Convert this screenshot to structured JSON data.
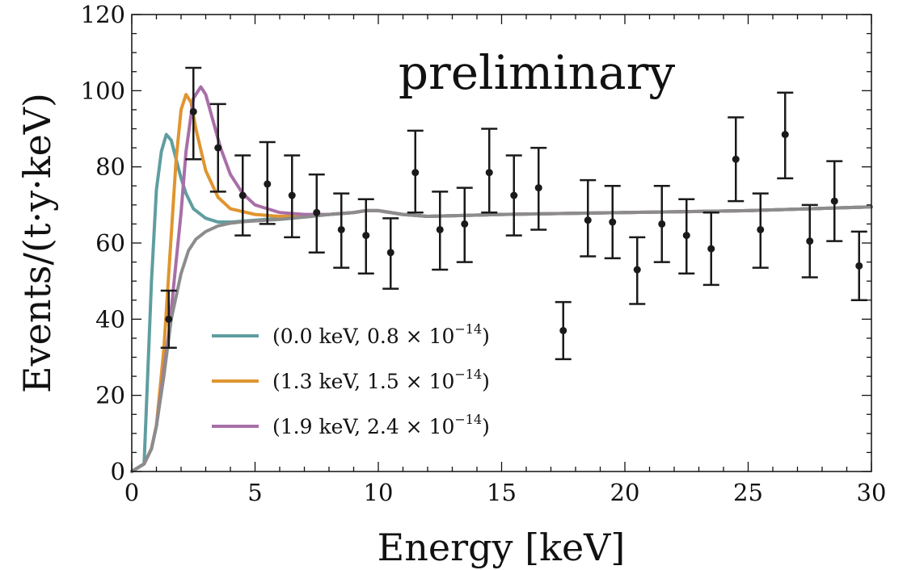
{
  "chart_data": {
    "type": "line",
    "xlabel": "Energy [keV]",
    "ylabel": "Events/(t·y·keV)",
    "annotation": "preliminary",
    "xlim": [
      0,
      30
    ],
    "ylim": [
      0,
      120
    ],
    "xticks": [
      0,
      5,
      10,
      15,
      20,
      25,
      30
    ],
    "yticks": [
      0,
      20,
      40,
      60,
      80,
      100,
      120
    ],
    "grid": false,
    "legend_position": "lower-left",
    "series": [
      {
        "name": "(0.0 keV, 0.8 × 10⁻¹⁴)",
        "label_main": "(0.0 keV, 0.8 × 10",
        "label_exp": "−14",
        "label_close": ")",
        "color": "#5f9ea0",
        "x": [
          0,
          0.5,
          0.6,
          0.8,
          1.0,
          1.2,
          1.4,
          1.6,
          1.8,
          2.0,
          2.2,
          2.5,
          3.0,
          3.5,
          4.0,
          5.0,
          6.0,
          7.0,
          8.0,
          9.0,
          9.5,
          10.0,
          11.0,
          12.0,
          15.0,
          20.0,
          25.0,
          30.0
        ],
        "y": [
          0,
          2,
          18,
          50,
          74,
          84,
          88.5,
          87,
          82,
          77,
          73,
          69,
          66.5,
          65.5,
          65.5,
          66,
          66.5,
          67,
          67.5,
          68,
          68.5,
          68.5,
          67.5,
          67,
          67.5,
          68,
          68.5,
          69.5
        ]
      },
      {
        "name": "(1.3 keV, 1.5 × 10⁻¹⁴)",
        "label_main": "(1.3 keV, 1.5 × 10",
        "label_exp": "−14",
        "label_close": ")",
        "color": "#e0952f",
        "x": [
          0,
          0.5,
          0.8,
          1.0,
          1.3,
          1.6,
          1.8,
          2.0,
          2.2,
          2.4,
          2.6,
          3.0,
          3.5,
          4.0,
          5.0,
          6.0,
          7.0,
          8.0,
          9.0,
          9.5,
          10.0,
          11.0,
          12.0,
          15.0,
          20.0,
          25.0,
          30.0
        ],
        "y": [
          0,
          2,
          6,
          12,
          32,
          62,
          82,
          95,
          99,
          97,
          90,
          79,
          72,
          69,
          67.5,
          67,
          67,
          67.5,
          68,
          68.5,
          68.5,
          67.5,
          67,
          67.5,
          68,
          68.5,
          69.5
        ]
      },
      {
        "name": "(1.9 keV, 2.4 × 10⁻¹⁴)",
        "label_main": "(1.9 keV, 2.4 × 10",
        "label_exp": "−14",
        "label_close": ")",
        "color": "#a86fa7",
        "x": [
          0,
          0.5,
          0.8,
          1.0,
          1.5,
          2.0,
          2.2,
          2.5,
          2.8,
          3.0,
          3.3,
          3.6,
          4.0,
          4.5,
          5.0,
          6.0,
          7.0,
          8.0,
          9.0,
          9.5,
          10.0,
          11.0,
          12.0,
          15.0,
          20.0,
          25.0,
          30.0
        ],
        "y": [
          0,
          2,
          6,
          12,
          36,
          68,
          84,
          98,
          101,
          99,
          92,
          85,
          78,
          73,
          70,
          68,
          67.5,
          67.5,
          68,
          68.5,
          68.5,
          67.5,
          67,
          67.5,
          68,
          68.5,
          69.5
        ]
      },
      {
        "color": "#8c8c8c",
        "x": [
          0,
          0.5,
          0.8,
          1.0,
          1.3,
          1.6,
          2.0,
          2.3,
          2.6,
          3.0,
          3.5,
          4.0,
          4.5,
          5.0,
          6.0,
          7.0,
          8.0,
          9.0,
          9.5,
          10.0,
          11.0,
          12.0,
          15.0,
          20.0,
          25.0,
          30.0
        ],
        "y": [
          0,
          2,
          6,
          12,
          25,
          40,
          52,
          58,
          61,
          63,
          64.5,
          65.2,
          65.6,
          65.8,
          66.2,
          66.8,
          67.5,
          68,
          68.5,
          68.5,
          67.5,
          67,
          67.5,
          68,
          68.5,
          69.5
        ]
      }
    ],
    "data_points": [
      {
        "x": 1.5,
        "y": 40,
        "yerr_low": 32.5,
        "yerr_high": 47.5
      },
      {
        "x": 2.5,
        "y": 94.5,
        "yerr_low": 82,
        "yerr_high": 106
      },
      {
        "x": 3.5,
        "y": 85,
        "yerr_low": 73.5,
        "yerr_high": 96.5
      },
      {
        "x": 4.5,
        "y": 72.5,
        "yerr_low": 62,
        "yerr_high": 83
      },
      {
        "x": 5.5,
        "y": 75.5,
        "yerr_low": 65,
        "yerr_high": 86.5
      },
      {
        "x": 6.5,
        "y": 72.5,
        "yerr_low": 61.5,
        "yerr_high": 83
      },
      {
        "x": 7.5,
        "y": 68,
        "yerr_low": 57.5,
        "yerr_high": 78
      },
      {
        "x": 8.5,
        "y": 63.5,
        "yerr_low": 53.5,
        "yerr_high": 73
      },
      {
        "x": 9.5,
        "y": 62,
        "yerr_low": 52,
        "yerr_high": 71.5
      },
      {
        "x": 10.5,
        "y": 57.5,
        "yerr_low": 48,
        "yerr_high": 66.5
      },
      {
        "x": 11.5,
        "y": 78.5,
        "yerr_low": 68,
        "yerr_high": 89.5
      },
      {
        "x": 12.5,
        "y": 63.5,
        "yerr_low": 53,
        "yerr_high": 73.5
      },
      {
        "x": 13.5,
        "y": 65,
        "yerr_low": 55,
        "yerr_high": 74.5
      },
      {
        "x": 14.5,
        "y": 78.5,
        "yerr_low": 68,
        "yerr_high": 90
      },
      {
        "x": 15.5,
        "y": 72.5,
        "yerr_low": 62,
        "yerr_high": 83
      },
      {
        "x": 16.5,
        "y": 74.5,
        "yerr_low": 63.5,
        "yerr_high": 85
      },
      {
        "x": 17.5,
        "y": 37,
        "yerr_low": 29.5,
        "yerr_high": 44.5
      },
      {
        "x": 18.5,
        "y": 66,
        "yerr_low": 56.5,
        "yerr_high": 76.5
      },
      {
        "x": 19.5,
        "y": 65.5,
        "yerr_low": 56,
        "yerr_high": 75
      },
      {
        "x": 20.5,
        "y": 53,
        "yerr_low": 44,
        "yerr_high": 61.5
      },
      {
        "x": 21.5,
        "y": 65,
        "yerr_low": 55,
        "yerr_high": 75
      },
      {
        "x": 22.5,
        "y": 62,
        "yerr_low": 52,
        "yerr_high": 71.5
      },
      {
        "x": 23.5,
        "y": 58.5,
        "yerr_low": 49,
        "yerr_high": 68
      },
      {
        "x": 24.5,
        "y": 82,
        "yerr_low": 71,
        "yerr_high": 93
      },
      {
        "x": 25.5,
        "y": 63.5,
        "yerr_low": 53.5,
        "yerr_high": 73
      },
      {
        "x": 26.5,
        "y": 88.5,
        "yerr_low": 77,
        "yerr_high": 99.5
      },
      {
        "x": 27.5,
        "y": 60.5,
        "yerr_low": 51,
        "yerr_high": 70
      },
      {
        "x": 28.5,
        "y": 71,
        "yerr_low": 60.5,
        "yerr_high": 81.5
      },
      {
        "x": 29.5,
        "y": 54,
        "yerr_low": 45,
        "yerr_high": 63
      }
    ]
  }
}
